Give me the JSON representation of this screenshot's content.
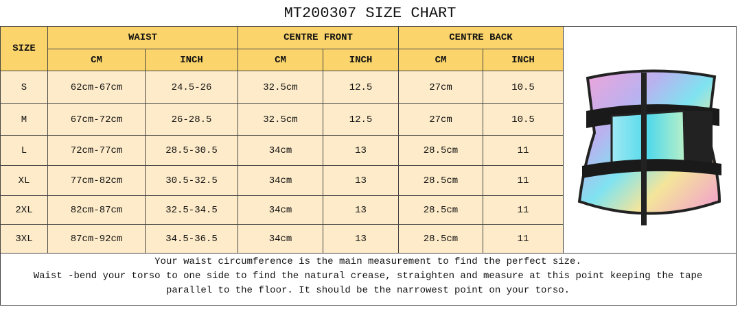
{
  "title": "MT200307 SIZE CHART",
  "table": {
    "size_header": "SIZE",
    "groups": [
      "WAIST",
      "CENTRE FRONT",
      "CENTRE BACK"
    ],
    "units": [
      "CM",
      "INCH",
      "CM",
      "INCH",
      "CM",
      "INCH"
    ],
    "rows": [
      [
        "S",
        "62cm-67cm",
        "24.5-26",
        "32.5cm",
        "12.5",
        "27cm",
        "10.5"
      ],
      [
        "M",
        "67cm-72cm",
        "26-28.5",
        "32.5cm",
        "12.5",
        "27cm",
        "10.5"
      ],
      [
        "L",
        "72cm-77cm",
        "28.5-30.5",
        "34cm",
        "13",
        "28.5cm",
        "11"
      ],
      [
        "XL",
        "77cm-82cm",
        "30.5-32.5",
        "34cm",
        "13",
        "28.5cm",
        "11"
      ],
      [
        "2XL",
        "82cm-87cm",
        "32.5-34.5",
        "34cm",
        "13",
        "28.5cm",
        "11"
      ],
      [
        "3XL",
        "87cm-92cm",
        "34.5-36.5",
        "34cm",
        "13",
        "28.5cm",
        "11"
      ]
    ]
  },
  "notes": [
    "Your waist circumference is the main measurement to find the perfect size.",
    "Waist -bend your torso to one side to find the natural crease, straighten and measure at this point keeping the tape",
    "parallel to the floor. It should be the narrowest point on your torso."
  ]
}
